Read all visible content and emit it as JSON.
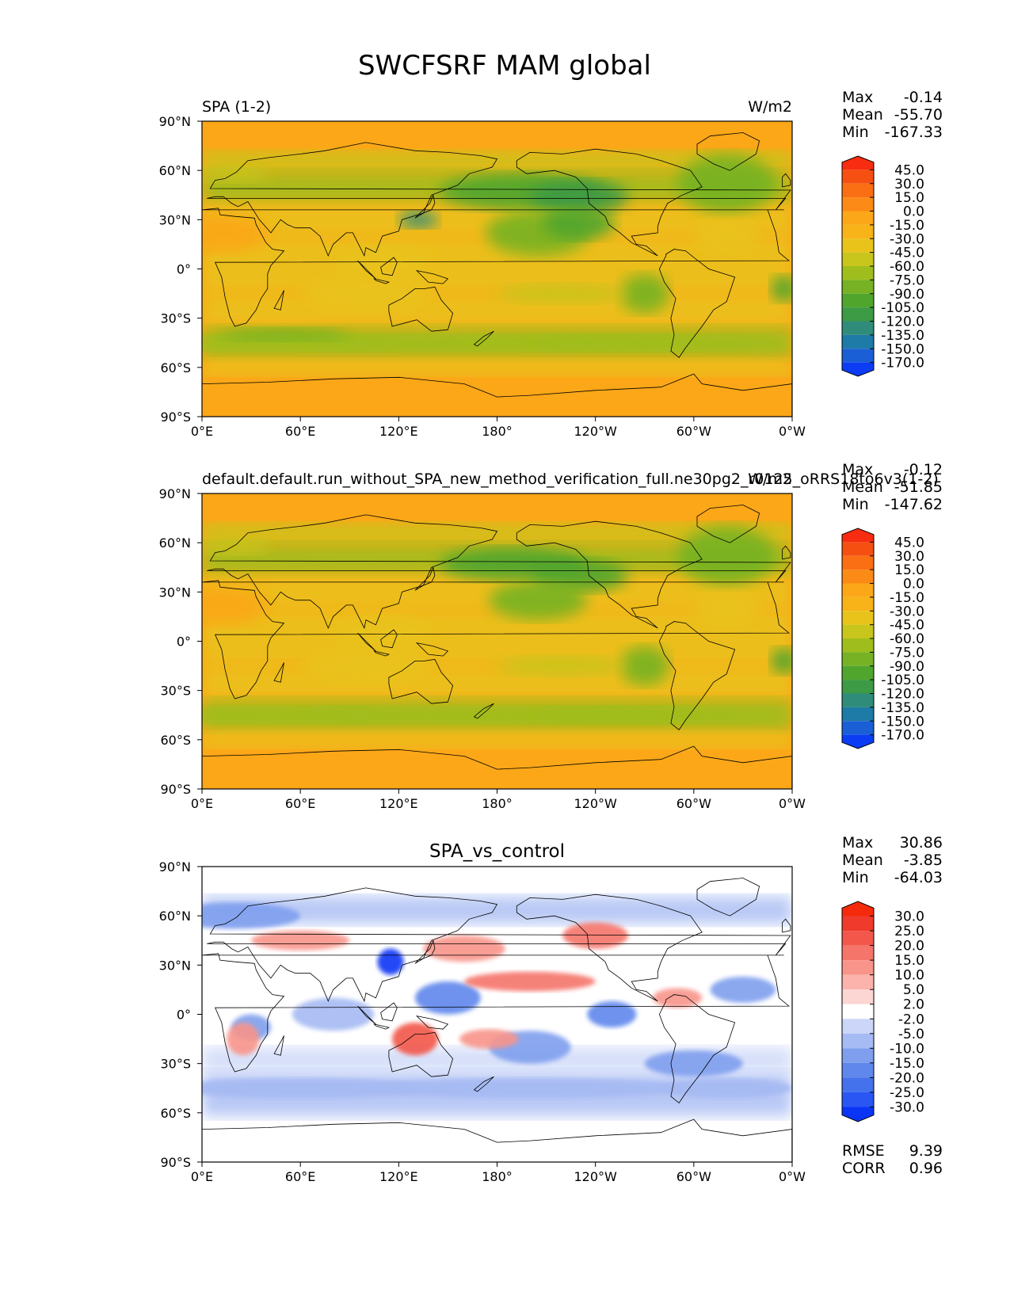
{
  "figure": {
    "title": "SWCFSRF MAM global"
  },
  "chart_data": [
    {
      "type": "heatmap",
      "panel_title_left": "SPA (1-2)",
      "panel_title_center": "",
      "panel_title_right": "W/m2",
      "stats": [
        {
          "label": "Max",
          "value": "-0.14"
        },
        {
          "label": "Mean",
          "value": "-55.70"
        },
        {
          "label": "Min",
          "value": "-167.33"
        }
      ],
      "extra_stats": [],
      "x_ticks": [
        "0°E",
        "60°E",
        "120°E",
        "180°",
        "120°W",
        "60°W",
        "0°W"
      ],
      "y_ticks": [
        "90°N",
        "60°N",
        "30°N",
        "0°",
        "30°S",
        "60°S",
        "90°S"
      ],
      "lon_range": [
        0,
        360
      ],
      "lat_range": [
        -90,
        90
      ],
      "colorbar": {
        "levels": [
          "-170.0",
          "-150.0",
          "-135.0",
          "-120.0",
          "-105.0",
          "-90.0",
          "-75.0",
          "-60.0",
          "-45.0",
          "-30.0",
          "-15.0",
          "0.0",
          "15.0",
          "30.0",
          "45.0"
        ],
        "colors": [
          "#0c3cf3",
          "#1a5fd6",
          "#1e7aa6",
          "#2f8c7a",
          "#3d9a45",
          "#50a52d",
          "#76b224",
          "#9fbe1d",
          "#c8c51d",
          "#e9c31a",
          "#f7b317",
          "#fba718",
          "#fb8a16",
          "#fa6e14",
          "#f64f12",
          "#f72c10"
        ]
      }
    },
    {
      "type": "heatmap",
      "panel_title_left": "default.default.run_without_SPA_new_method_verification_full.ne30pg2_r0125_oRRS18to6v3(1-2)",
      "panel_title_center": "",
      "panel_title_right": "W/m2",
      "stats": [
        {
          "label": "Max",
          "value": "-0.12"
        },
        {
          "label": "Mean",
          "value": "-51.85"
        },
        {
          "label": "Min",
          "value": "-147.62"
        }
      ],
      "extra_stats": [],
      "x_ticks": [
        "0°E",
        "60°E",
        "120°E",
        "180°",
        "120°W",
        "60°W",
        "0°W"
      ],
      "y_ticks": [
        "90°N",
        "60°N",
        "30°N",
        "0°",
        "30°S",
        "60°S",
        "90°S"
      ],
      "lon_range": [
        0,
        360
      ],
      "lat_range": [
        -90,
        90
      ],
      "colorbar": {
        "levels": [
          "-170.0",
          "-150.0",
          "-135.0",
          "-120.0",
          "-105.0",
          "-90.0",
          "-75.0",
          "-60.0",
          "-45.0",
          "-30.0",
          "-15.0",
          "0.0",
          "15.0",
          "30.0",
          "45.0"
        ],
        "colors": [
          "#0c3cf3",
          "#1a5fd6",
          "#1e7aa6",
          "#2f8c7a",
          "#3d9a45",
          "#50a52d",
          "#76b224",
          "#9fbe1d",
          "#c8c51d",
          "#e9c31a",
          "#f7b317",
          "#fba718",
          "#fb8a16",
          "#fa6e14",
          "#f64f12",
          "#f72c10"
        ]
      }
    },
    {
      "type": "heatmap",
      "panel_title_left": "",
      "panel_title_center": "SPA_vs_control",
      "panel_title_right": "",
      "stats": [
        {
          "label": "Max",
          "value": "30.86"
        },
        {
          "label": "Mean",
          "value": "-3.85"
        },
        {
          "label": "Min",
          "value": "-64.03"
        }
      ],
      "extra_stats": [
        {
          "label": "RMSE",
          "value": "9.39"
        },
        {
          "label": "CORR",
          "value": "0.96"
        }
      ],
      "x_ticks": [
        "0°E",
        "60°E",
        "120°E",
        "180°",
        "120°W",
        "60°W",
        "0°W"
      ],
      "y_ticks": [
        "90°N",
        "60°N",
        "30°N",
        "0°",
        "30°S",
        "60°S",
        "90°S"
      ],
      "lon_range": [
        0,
        360
      ],
      "lat_range": [
        -90,
        90
      ],
      "colorbar": {
        "levels": [
          "-30.0",
          "-25.0",
          "-20.0",
          "-15.0",
          "-10.0",
          "-5.0",
          "-2.0",
          "2.0",
          "5.0",
          "10.0",
          "15.0",
          "20.0",
          "25.0",
          "30.0"
        ],
        "colors": [
          "#0b35f5",
          "#2a57f3",
          "#4471ec",
          "#5f87ec",
          "#7f9fee",
          "#a6baf3",
          "#cbd6f8",
          "#ffffff",
          "#fcd6d2",
          "#fbb3ab",
          "#f8948a",
          "#f5756a",
          "#f2574a",
          "#ef3a2c",
          "#f52a0c"
        ]
      }
    }
  ]
}
